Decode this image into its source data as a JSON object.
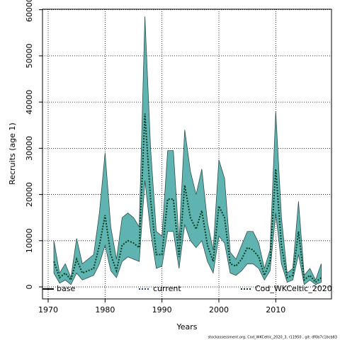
{
  "chart_data": {
    "type": "band",
    "x_label": "Years",
    "y_label": "Recruits (age 1)",
    "footer": "stockassessment.org, Cod_WKCeltic_2020_3, r11950 , git: df0b7c1bcb83",
    "x": [
      1971,
      1972,
      1973,
      1974,
      1975,
      1976,
      1977,
      1978,
      1979,
      1980,
      1981,
      1982,
      1983,
      1984,
      1985,
      1986,
      1987,
      1988,
      1989,
      1990,
      1991,
      1992,
      1993,
      1994,
      1995,
      1996,
      1997,
      1998,
      1999,
      2000,
      2001,
      2002,
      2003,
      2004,
      2005,
      2006,
      2007,
      2008,
      2009,
      2010,
      2011,
      2012,
      2013,
      2014,
      2015,
      2016,
      2017,
      2018
    ],
    "series": [
      {
        "name": "Cod_WKCeltic_2020",
        "color": "#003f1f",
        "band_color": "#5fb3b0",
        "values": [
          5500,
          2000,
          3000,
          1500,
          6000,
          3000,
          3500,
          4000,
          9000,
          15500,
          7000,
          3500,
          9000,
          10000,
          9500,
          8500,
          37500,
          19000,
          7000,
          7000,
          19000,
          19000,
          6500,
          22000,
          15000,
          12500,
          16500,
          9000,
          5500,
          17500,
          15000,
          5000,
          4500,
          6000,
          8500,
          8000,
          6500,
          2500,
          5500,
          25500,
          9000,
          2000,
          2500,
          12000,
          1500,
          2500,
          1000,
          2000
        ],
        "lower": [
          3000,
          800,
          1500,
          500,
          3000,
          1500,
          2000,
          2500,
          5000,
          9000,
          3500,
          2000,
          5500,
          6500,
          6000,
          5500,
          23000,
          12000,
          4000,
          4500,
          12000,
          12000,
          4000,
          13500,
          10000,
          8500,
          10000,
          5500,
          3000,
          11000,
          9500,
          3000,
          2500,
          3500,
          5000,
          5000,
          4000,
          1500,
          3500,
          16000,
          5000,
          1000,
          1500,
          7000,
          500,
          1500,
          500,
          1000
        ],
        "upper": [
          10000,
          3000,
          5000,
          2000,
          10500,
          5000,
          6000,
          7000,
          16000,
          29000,
          13000,
          6000,
          15000,
          16000,
          15000,
          13000,
          58500,
          30000,
          12000,
          11000,
          29500,
          29500,
          10000,
          34000,
          25000,
          20000,
          25500,
          14000,
          8000,
          27500,
          23500,
          7500,
          6000,
          9000,
          12000,
          12000,
          9500,
          4000,
          8000,
          38000,
          15000,
          3000,
          4000,
          18500,
          2500,
          4000,
          1500,
          5000
        ]
      }
    ],
    "legend": [
      {
        "name": "base",
        "color": "#000000",
        "dash": "solid"
      },
      {
        "name": "current",
        "color": "#1f4e8c",
        "dash": "dotted"
      },
      {
        "name": "Cod_WKCeltic_2020",
        "color": "#003f1f",
        "dash": "dotted"
      }
    ],
    "xlim": [
      1969.0,
      2019.8
    ],
    "ylim": [
      -2600,
      60100
    ],
    "xticks": [
      1970,
      1980,
      1990,
      2000,
      2010
    ],
    "yticks": [
      0,
      10000,
      20000,
      30000,
      40000,
      50000,
      60000
    ],
    "grid": true
  }
}
